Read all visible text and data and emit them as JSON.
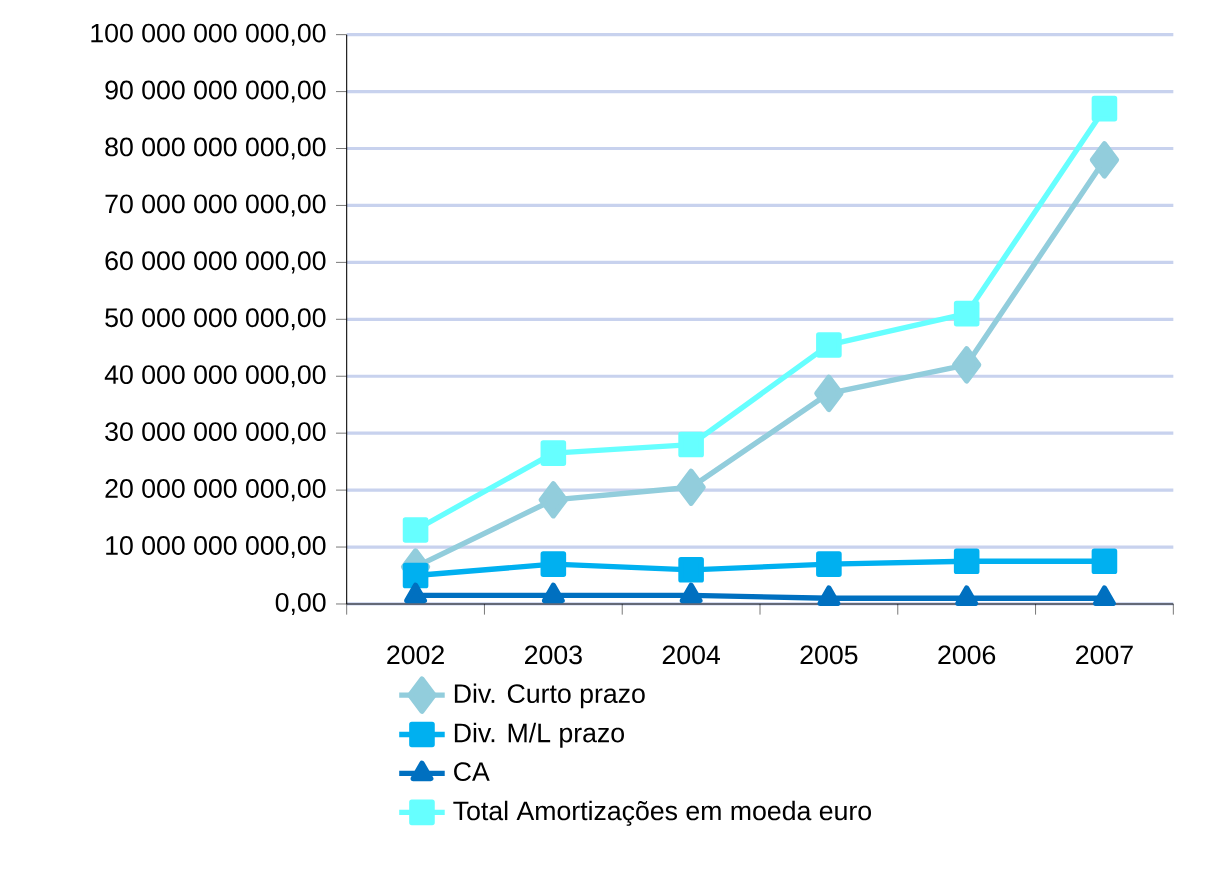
{
  "chart_data": {
    "type": "line",
    "categories": [
      "2002",
      "2003",
      "2004",
      "2005",
      "2006",
      "2007"
    ],
    "series": [
      {
        "name": "Div. Curto prazo",
        "color": "#92cddc",
        "marker": "diamond",
        "values": [
          6500000000,
          18300000000,
          20500000000,
          37000000000,
          42000000000,
          78000000000
        ]
      },
      {
        "name": "Div. M/L prazo",
        "color": "#00b0f0",
        "marker": "square",
        "values": [
          5000000000,
          7000000000,
          6000000000,
          7000000000,
          7500000000,
          7500000000
        ]
      },
      {
        "name": "CA",
        "color": "#0070c0",
        "marker": "triangle",
        "values": [
          1500000000,
          1500000000,
          1500000000,
          1000000000,
          1000000000,
          1000000000
        ]
      },
      {
        "name": "Total Amortizações em moeda euro",
        "color": "#66ffff",
        "marker": "square",
        "values": [
          13000000000,
          26500000000,
          28000000000,
          45500000000,
          51000000000,
          87000000000
        ]
      }
    ],
    "ylim": [
      0,
      100000000000
    ],
    "yticks": [
      {
        "value": 0,
        "label": "0,00"
      },
      {
        "value": 10000000000,
        "label": "10 000 000 000,00"
      },
      {
        "value": 20000000000,
        "label": "20 000 000 000,00"
      },
      {
        "value": 30000000000,
        "label": "30 000 000 000,00"
      },
      {
        "value": 40000000000,
        "label": "40 000 000 000,00"
      },
      {
        "value": 50000000000,
        "label": "50 000 000 000,00"
      },
      {
        "value": 60000000000,
        "label": "60 000 000 000,00"
      },
      {
        "value": 70000000000,
        "label": "70 000 000 000,00"
      },
      {
        "value": 80000000000,
        "label": "80 000 000 000,00"
      },
      {
        "value": 90000000000,
        "label": "90 000 000 000,00"
      },
      {
        "value": 100000000000,
        "label": "100 000 000 000,00"
      }
    ],
    "grid": "y",
    "legend": "bottom",
    "line_style": "solid"
  }
}
